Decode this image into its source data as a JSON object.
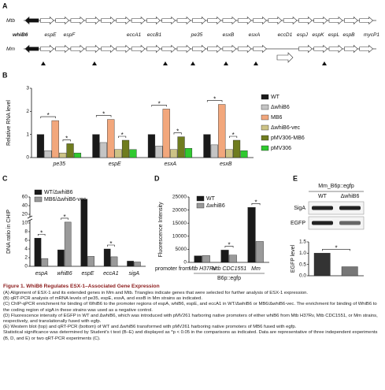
{
  "panel_a": {
    "panel": "A",
    "row_labels": [
      "Mtb",
      "Mm"
    ],
    "genes": [
      "whiB6",
      "espE",
      "espF",
      "eccA1",
      "eccB1",
      "pe35",
      "esxB",
      "esxA",
      "eccD1",
      "espJ",
      "espK",
      "espL",
      "espB",
      "mycP1"
    ]
  },
  "chart_data": [
    {
      "type": "bar",
      "panel": "B",
      "ylabel": "Relative RNA level",
      "categories": [
        "pe35",
        "espE",
        "esxA",
        "esxB"
      ],
      "series": [
        {
          "name": "WT",
          "color": "#1a1a1a",
          "values": [
            1.0,
            1.0,
            1.0,
            1.0
          ]
        },
        {
          "name": "ΔwhiB6",
          "color": "#c4c4c4",
          "values": [
            0.3,
            0.65,
            0.5,
            0.55
          ]
        },
        {
          "name": "MB6",
          "color": "#f2a77c",
          "values": [
            1.6,
            1.65,
            2.1,
            2.3
          ]
        },
        {
          "name": "ΔwhiB6-vec",
          "color": "#cdc386",
          "values": [
            0.2,
            0.35,
            0.35,
            0.35
          ]
        },
        {
          "name": "pMV306-MB6",
          "color": "#6f7c1f",
          "values": [
            0.6,
            0.75,
            0.9,
            0.75
          ]
        },
        {
          "name": "pMV306",
          "color": "#2fc92f",
          "values": [
            0.2,
            0.35,
            0.4,
            0.3
          ]
        }
      ],
      "ylim": [
        0,
        3
      ],
      "yticks": [
        0,
        1,
        2,
        3
      ],
      "significance": [
        {
          "category": 0,
          "series": [
            0,
            2
          ],
          "label": "*"
        },
        {
          "category": 0,
          "series": [
            3,
            4
          ],
          "label": "*"
        },
        {
          "category": 1,
          "series": [
            0,
            2
          ],
          "label": "*"
        },
        {
          "category": 1,
          "series": [
            3,
            4
          ],
          "label": "*"
        },
        {
          "category": 2,
          "series": [
            0,
            2
          ],
          "label": "*"
        },
        {
          "category": 2,
          "series": [
            3,
            4
          ],
          "label": "*"
        },
        {
          "category": 3,
          "series": [
            0,
            2
          ],
          "label": "*"
        },
        {
          "category": 3,
          "series": [
            3,
            4
          ],
          "label": "*"
        }
      ]
    },
    {
      "type": "bar",
      "panel": "C",
      "ylabel": "DNA ratio in CHIP",
      "categories": [
        "espA",
        "whiB6",
        "espE",
        "eccA1",
        "sigA"
      ],
      "series": [
        {
          "name": "WT/ΔwhiB6",
          "color": "#1a1a1a",
          "values": [
            6.5,
            3.8,
            55,
            4.0,
            1.2
          ]
        },
        {
          "name": "MB6/ΔwhiB6-vec",
          "color": "#9a9a9a",
          "values": [
            1.8,
            11,
            2.3,
            2.2,
            1.0
          ]
        }
      ],
      "ylim": [
        0,
        60
      ],
      "yticks": [
        0,
        2,
        4,
        6,
        8,
        10,
        20,
        40,
        60
      ],
      "y_break": true,
      "significance": [
        {
          "category": 0,
          "series": [
            0,
            1
          ],
          "label": "*"
        },
        {
          "category": 1,
          "series": [
            0,
            1
          ],
          "label": "*"
        },
        {
          "category": 3,
          "series": [
            0,
            1
          ],
          "label": "*"
        }
      ]
    },
    {
      "type": "bar",
      "panel": "D",
      "ylabel": "Fluorescence Intensity",
      "xlabel": "promoter from",
      "xlabel2": "B6p::egfp",
      "categories": [
        "Mtb H37Rv",
        "Mtb CDC1551",
        "Mm"
      ],
      "series": [
        {
          "name": "WT",
          "color": "#1a1a1a",
          "values": [
            2500,
            4700,
            21000
          ]
        },
        {
          "name": "ΔwhiB6",
          "color": "#9a9a9a",
          "values": [
            2600,
            2800,
            8000
          ]
        }
      ],
      "ylim": [
        0,
        25000
      ],
      "yticks": [
        0,
        5000,
        10000,
        15000,
        20000,
        25000
      ],
      "significance": [
        {
          "category": 1,
          "series": [
            0,
            1
          ],
          "label": "*"
        },
        {
          "category": 2,
          "series": [
            0,
            1
          ],
          "label": "*"
        }
      ]
    },
    {
      "type": "bar",
      "panel": "E",
      "title": "Mm_B6p::egfp",
      "blot_rows": [
        "SigA",
        "EGFP"
      ],
      "ylabel": "EGFP level",
      "categories": [
        "WT",
        "ΔwhiB6"
      ],
      "values": [
        1.0,
        0.4
      ],
      "colors": [
        "#333333",
        "#777777"
      ],
      "ylim": [
        0,
        1.5
      ],
      "yticks": [
        {
          "value": 0,
          "label": "0.0"
        },
        0.5,
        {
          "value": 1,
          "label": "1.0"
        },
        1.5
      ],
      "significance": [
        {
          "categories": [
            0,
            1
          ],
          "label": "*"
        }
      ]
    }
  ],
  "caption": {
    "title": "Figure 1. WhiB6 Regulates ESX-1–Associated Gene Expression",
    "paragraphs": [
      "(A) Alignment of ESX-1 and its extended genes in Mm and Mtb. Triangles indicate genes that were selected for further analysis of ESX-1 expression.",
      "(B) qRT-PCR analysis of mRNA levels of pe35, espE, esxA, and esxB in Mm strains as indicated.",
      "(C) ChIP-qPCR enrichment for binding of WhiB6 to the promoter regions of espA, whiB6, espE, and eccA1 in WT/ΔwhiB6 or MB6/ΔwhiB6-vec. The enrichment for binding of WhiB6 to the coding region of sigA in these strains was used as a negative control.",
      "(D) Fluorescence intensity of EGFP in WT and ΔwhiB6, which was introduced with pMV261 harboring native promoters of either whiB6 from Mtb H37Rv, Mtb CDC1551, or Mm strains, respectively, and translationally fused with egfp.",
      "(E) Western blot (top) and qRT-PCR (bottom) of WT and ΔwhiB6 transformed with pMV261 harboring native promoters of MB6 fused with egfp.",
      "Statistical significance was determined by Student's t test (B–E) and displayed as *p < 0.05 in the comparisons as indicated. Data are representative of three independent experiments (B, D, and E) or two qRT-PCR experiments (C)."
    ]
  }
}
